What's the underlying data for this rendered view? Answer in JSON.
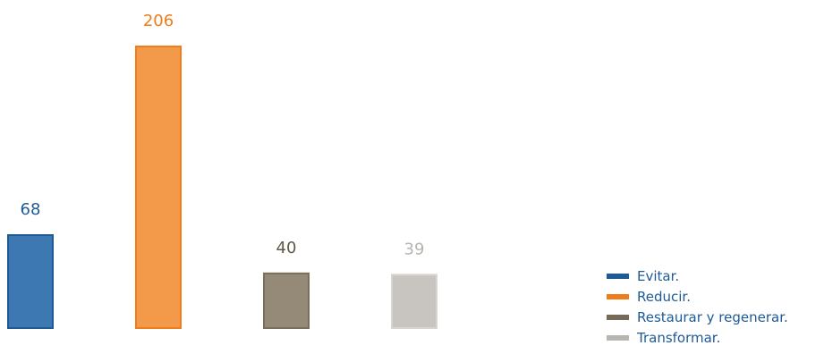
{
  "chart_data": {
    "type": "bar",
    "categories": [
      "Evitar.",
      "Reducir.",
      "Restaurar y regenerar.",
      "Transformar."
    ],
    "values": [
      68,
      206,
      40,
      39
    ],
    "title": "",
    "xlabel": "",
    "ylabel": "",
    "ylim": [
      0,
      206
    ],
    "grid": false,
    "legend_position": "bottom-right",
    "bar_colors": [
      "#3e78b2",
      "#f2994a",
      "#958a77",
      "#c8c5c1"
    ],
    "bar_border_colors": [
      "#1e5a96",
      "#ee7d1a",
      "#7a6f5a",
      "#d8d5d1"
    ],
    "label_colors": [
      "#1e5a96",
      "#ee7d1a",
      "#5f5848",
      "#b8b5b1"
    ],
    "legend_colors": [
      "#1e5a96",
      "#ee7d1a",
      "#756b58",
      "#b9b6b1"
    ]
  }
}
